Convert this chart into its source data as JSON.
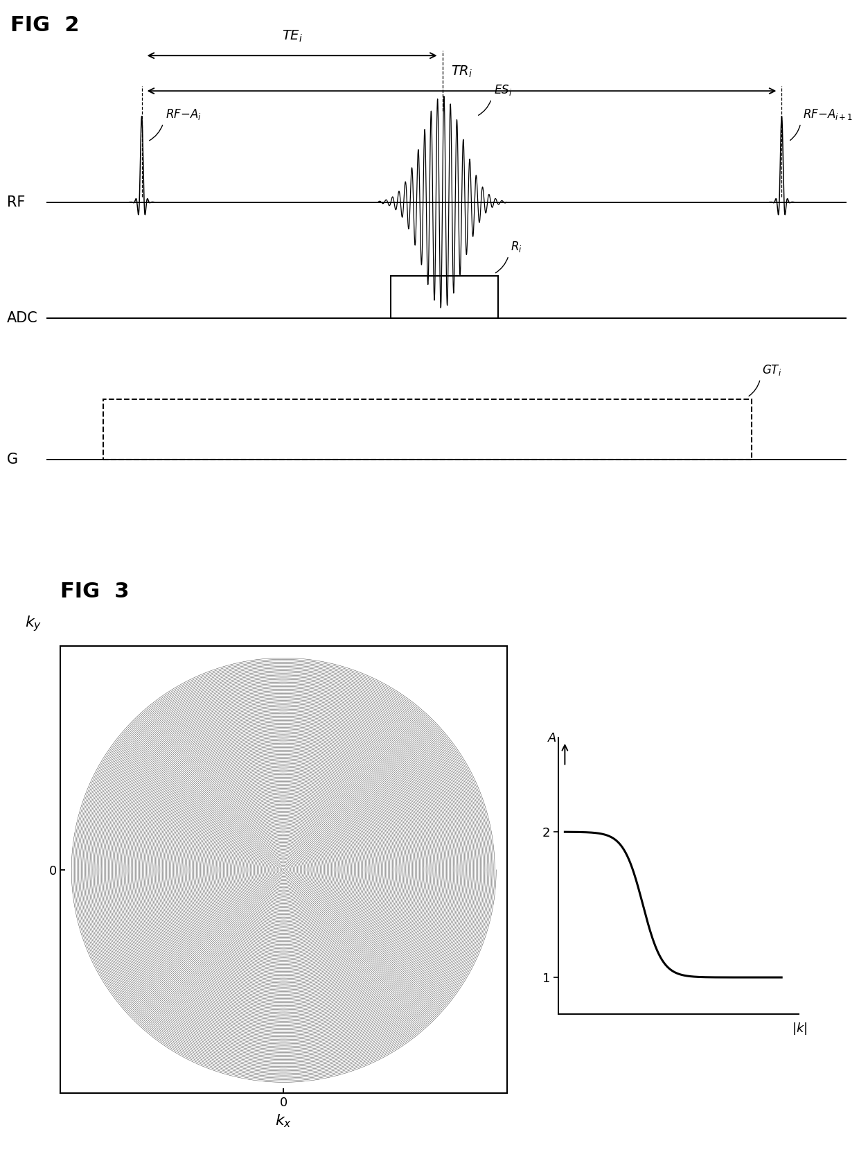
{
  "fig2_title": "FIG  2",
  "fig3_title": "FIG  3",
  "bg_color": "#ffffff",
  "rf_label": "RF",
  "adc_label": "ADC",
  "g_label": "G",
  "spiral_turns": 150,
  "spiral_color": "#444444",
  "spiral_lw": 0.35
}
